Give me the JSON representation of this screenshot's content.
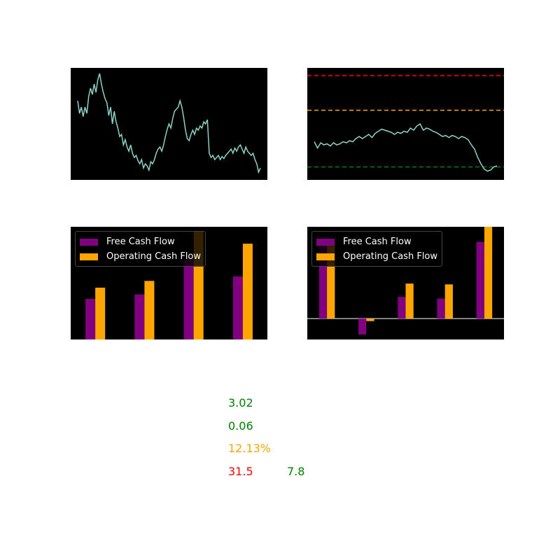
{
  "colors": {
    "line": "#8dd3c7",
    "fcf": "#800080",
    "ocf": "#ffa500",
    "green": "#008000",
    "orange": "#ffa500",
    "red": "#ff0000"
  },
  "chart_data": [
    {
      "type": "line",
      "series": [
        {
          "values": [
            0.72,
            0.6,
            0.66,
            0.57,
            0.66,
            0.6,
            0.76,
            0.84,
            0.78,
            0.88,
            0.8,
            0.92,
            0.98,
            0.88,
            0.8,
            0.74,
            0.7,
            0.58,
            0.66,
            0.5,
            0.62,
            0.52,
            0.46,
            0.38,
            0.4,
            0.3,
            0.35,
            0.28,
            0.24,
            0.3,
            0.22,
            0.18,
            0.2,
            0.15,
            0.12,
            0.16,
            0.08,
            0.12,
            0.1,
            0.06,
            0.14,
            0.12,
            0.16,
            0.22,
            0.26,
            0.28,
            0.24,
            0.3,
            0.38,
            0.45,
            0.5,
            0.46,
            0.55,
            0.62,
            0.64,
            0.66,
            0.72,
            0.66,
            0.56,
            0.44,
            0.36,
            0.34,
            0.4,
            0.44,
            0.4,
            0.46,
            0.44,
            0.48,
            0.46,
            0.52,
            0.5,
            0.54,
            0.22,
            0.18,
            0.2,
            0.16,
            0.18,
            0.2,
            0.16,
            0.19,
            0.17,
            0.2,
            0.22,
            0.24,
            0.26,
            0.22,
            0.27,
            0.24,
            0.28,
            0.3,
            0.26,
            0.22,
            0.28,
            0.24,
            0.22,
            0.2,
            0.22,
            0.16,
            0.12,
            0.04,
            0.08
          ]
        }
      ],
      "ylim": [
        0,
        1
      ]
    },
    {
      "type": "line",
      "series": [
        {
          "values": [
            0.33,
            0.27,
            0.32,
            0.3,
            0.31,
            0.29,
            0.32,
            0.3,
            0.31,
            0.33,
            0.32,
            0.34,
            0.33,
            0.36,
            0.38,
            0.36,
            0.38,
            0.4,
            0.37,
            0.41,
            0.43,
            0.45,
            0.44,
            0.43,
            0.42,
            0.4,
            0.42,
            0.41,
            0.43,
            0.42,
            0.46,
            0.44,
            0.48,
            0.5,
            0.44,
            0.46,
            0.45,
            0.43,
            0.42,
            0.4,
            0.38,
            0.39,
            0.37,
            0.39,
            0.38,
            0.36,
            0.38,
            0.37,
            0.35,
            0.3,
            0.26,
            0.18,
            0.12,
            0.07,
            0.05,
            0.06,
            0.09,
            0.1
          ]
        }
      ],
      "reference_lines": [
        {
          "y": 0.96,
          "color": "red",
          "style": "dashed"
        },
        {
          "y": 0.63,
          "color": "orange",
          "style": "dashed"
        },
        {
          "y": 0.09,
          "color": "green",
          "style": "dashed"
        }
      ],
      "ylim": [
        0,
        1
      ]
    },
    {
      "type": "bar",
      "legend": [
        "Free Cash Flow",
        "Operating Cash Flow"
      ],
      "legend_location": "top-left",
      "categories": [
        "",
        "",
        "",
        ""
      ],
      "series": [
        {
          "name": "Free Cash Flow",
          "values": [
            0.36,
            0.4,
            0.71,
            0.56
          ]
        },
        {
          "name": "Operating Cash Flow",
          "values": [
            0.46,
            0.52,
            0.96,
            0.85
          ]
        }
      ],
      "ylim": [
        0,
        1
      ]
    },
    {
      "type": "bar",
      "legend": [
        "Free Cash Flow",
        "Operating Cash Flow"
      ],
      "legend_location": "top-left",
      "categories": [
        "",
        "",
        "",
        "",
        ""
      ],
      "series": [
        {
          "name": "Free Cash Flow",
          "values": [
            0.92,
            -0.19,
            0.26,
            0.24,
            0.92
          ]
        },
        {
          "name": "Operating Cash Flow",
          "values": [
            0.93,
            -0.03,
            0.42,
            0.41,
            1.1
          ]
        }
      ],
      "zero_line": true,
      "ylim": [
        -0.25,
        1.1
      ]
    }
  ],
  "metrics": {
    "m1": "3.02",
    "m2": "0.06",
    "m3": "12.13%",
    "m4": "31.5",
    "m5": "7.8"
  }
}
